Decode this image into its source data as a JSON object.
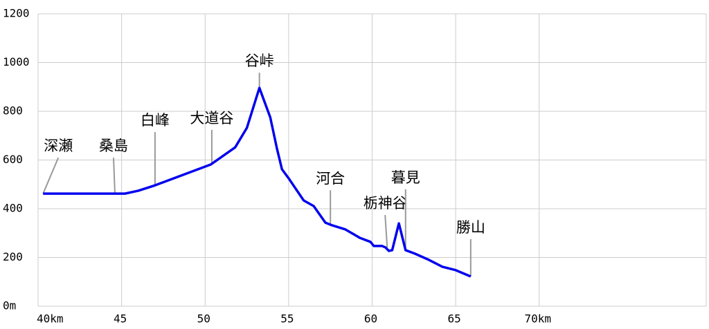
{
  "chart_data": {
    "type": "line",
    "xlim": [
      40,
      80
    ],
    "ylim": [
      0,
      1200
    ],
    "xticks": [
      {
        "value": 40,
        "label": "40km"
      },
      45,
      50,
      55,
      60,
      65,
      {
        "value": 70,
        "label": "70km"
      }
    ],
    "yticks": [
      {
        "value": 0,
        "label": "0m"
      },
      200,
      400,
      600,
      800,
      1000,
      1200
    ],
    "grid": true,
    "series": [
      {
        "color": "#0000ee",
        "x": [
          40.3,
          45.2,
          46.0,
          47.0,
          50.35,
          51.8,
          52.5,
          53.25,
          53.9,
          54.3,
          54.6,
          55.0,
          55.9,
          56.5,
          57.2,
          57.6,
          58.4,
          59.25,
          59.9,
          60.1,
          60.6,
          60.8,
          61.0,
          61.2,
          61.6,
          62.0,
          62.55,
          63.4,
          64.2,
          65.0,
          65.9
        ],
        "values": [
          462,
          462,
          474,
          496,
          582,
          652,
          732,
          896,
          775,
          647,
          562,
          525,
          434,
          411,
          343,
          332,
          315,
          281,
          264,
          247,
          247,
          241,
          227,
          230,
          340,
          230,
          216,
          190,
          162,
          148,
          122
        ]
      }
    ],
    "annotations": [
      {
        "text": "深瀬",
        "x": 40.3,
        "y": 462
      },
      {
        "text": "桑島",
        "x": 44.6,
        "y": 462
      },
      {
        "text": "白峰",
        "x": 47.0,
        "y": 496
      },
      {
        "text": "大道谷",
        "x": 50.4,
        "y": 582
      },
      {
        "text": "谷峠",
        "x": 53.25,
        "y": 896
      },
      {
        "text": "河合",
        "x": 57.5,
        "y": 334
      },
      {
        "text": "栃神谷",
        "x": 60.9,
        "y": 241
      },
      {
        "text": "暮見",
        "x": 62.0,
        "y": 230
      },
      {
        "text": "勝山",
        "x": 65.9,
        "y": 122
      }
    ]
  }
}
